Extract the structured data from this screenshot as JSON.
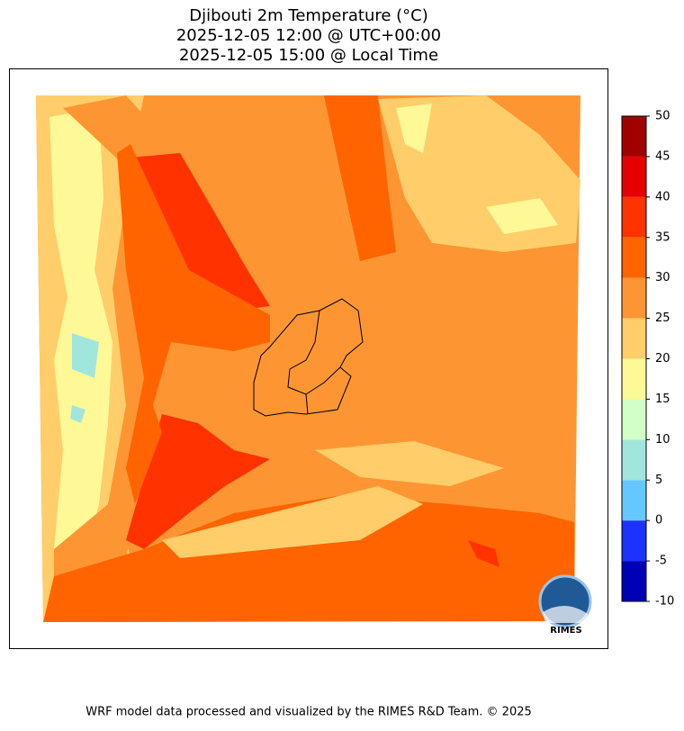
{
  "chart_data": {
    "type": "contour-map",
    "title": [
      "Djibouti 2m Temperature (°C)",
      "2025-12-05 12:00 @ UTC+00:00",
      "2025-12-05 15:00 @ Local Time"
    ],
    "colorbar": {
      "lim": [
        -10,
        50
      ],
      "ticks": [
        -10,
        -5,
        0,
        5,
        10,
        15,
        20,
        25,
        30,
        35,
        40,
        45,
        50
      ],
      "colors": [
        "#0000b4",
        "#1e32ff",
        "#64c8ff",
        "#a0e6dc",
        "#d2ffc8",
        "#fff896",
        "#ffcd6a",
        "#fd9632",
        "#ff6400",
        "#ff3200",
        "#e60000",
        "#a00000"
      ]
    },
    "logo_text": "RIMES",
    "footer": "WRF model data processed and visualized by the RIMES R&D Team. © 2025"
  }
}
